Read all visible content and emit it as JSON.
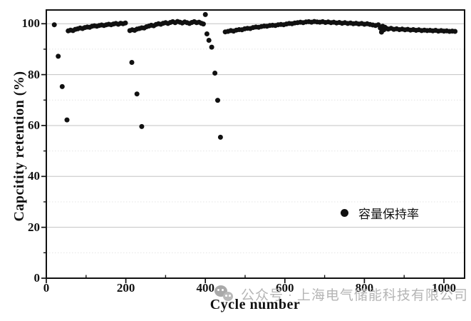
{
  "figure": {
    "background": "#ffffff",
    "frame_color": "#111111",
    "watermark": {
      "icon": "wechat-icon",
      "text": "公众号 · 上海电气储能科技有限公司",
      "color": "#b5b5b5"
    }
  },
  "chart_data": {
    "type": "scatter",
    "title": "",
    "xlabel": "Cycle number",
    "ylabel": "Capcitity retention (%)",
    "xlim": [
      0,
      1052
    ],
    "ylim": [
      0,
      105.4
    ],
    "x_ticks": [
      0,
      200,
      400,
      600,
      800,
      1000
    ],
    "x_minor_ticks": [
      100,
      300,
      500,
      700,
      900
    ],
    "y_ticks": [
      0,
      20,
      40,
      60,
      80,
      100
    ],
    "y_minor_ticks": [
      10,
      30,
      50,
      70,
      90
    ],
    "grid": "horizontal only: solid light-gray major lines at 20% steps, dotted fainter minor lines at 10% steps",
    "marker": "filled-circle",
    "marker_color": "#111111",
    "marker_size_px": 7,
    "legend": {
      "position": "inside right-middle",
      "entries": [
        {
          "label": "容量保持率",
          "marker": "filled-circle",
          "color": "#111111"
        }
      ]
    },
    "series": [
      {
        "name": "容量保持率",
        "points": [
          [
            20,
            99.6
          ],
          [
            30,
            87.2
          ],
          [
            40,
            75.3
          ],
          [
            52,
            62.2
          ],
          [
            55,
            97.2
          ],
          [
            61,
            97.5
          ],
          [
            67,
            97.3
          ],
          [
            73,
            97.8
          ],
          [
            79,
            98.0
          ],
          [
            85,
            98.3
          ],
          [
            91,
            98.1
          ],
          [
            97,
            98.5
          ],
          [
            103,
            98.7
          ],
          [
            109,
            98.6
          ],
          [
            115,
            99.0
          ],
          [
            121,
            99.2
          ],
          [
            127,
            99.0
          ],
          [
            133,
            99.3
          ],
          [
            139,
            99.5
          ],
          [
            145,
            99.3
          ],
          [
            151,
            99.6
          ],
          [
            157,
            99.8
          ],
          [
            163,
            99.6
          ],
          [
            169,
            99.9
          ],
          [
            175,
            100.1
          ],
          [
            181,
            99.8
          ],
          [
            187,
            100.2
          ],
          [
            193,
            100.0
          ],
          [
            199,
            100.3
          ],
          [
            215,
            84.8
          ],
          [
            228,
            72.4
          ],
          [
            240,
            59.6
          ],
          [
            210,
            97.3
          ],
          [
            216,
            97.6
          ],
          [
            222,
            97.4
          ],
          [
            228,
            97.9
          ],
          [
            234,
            98.1
          ],
          [
            240,
            98.4
          ],
          [
            246,
            98.3
          ],
          [
            252,
            98.8
          ],
          [
            258,
            99.1
          ],
          [
            264,
            99.4
          ],
          [
            270,
            99.2
          ],
          [
            276,
            99.7
          ],
          [
            282,
            100.0
          ],
          [
            288,
            99.8
          ],
          [
            294,
            100.2
          ],
          [
            300,
            100.4
          ],
          [
            306,
            100.1
          ],
          [
            312,
            100.5
          ],
          [
            318,
            100.8
          ],
          [
            324,
            100.4
          ],
          [
            330,
            100.9
          ],
          [
            336,
            100.6
          ],
          [
            342,
            100.3
          ],
          [
            348,
            100.7
          ],
          [
            354,
            100.4
          ],
          [
            360,
            100.1
          ],
          [
            366,
            100.5
          ],
          [
            372,
            100.8
          ],
          [
            378,
            100.4
          ],
          [
            384,
            100.6
          ],
          [
            390,
            100.2
          ],
          [
            395,
            99.9
          ],
          [
            400,
            103.6
          ],
          [
            404,
            96.0
          ],
          [
            409,
            93.5
          ],
          [
            416,
            90.8
          ],
          [
            424,
            80.6
          ],
          [
            431,
            69.9
          ],
          [
            438,
            55.4
          ],
          [
            450,
            96.8
          ],
          [
            457,
            97.0
          ],
          [
            464,
            97.3
          ],
          [
            471,
            97.1
          ],
          [
            478,
            97.5
          ],
          [
            485,
            97.7
          ],
          [
            492,
            97.6
          ],
          [
            499,
            98.0
          ],
          [
            506,
            98.2
          ],
          [
            513,
            98.1
          ],
          [
            520,
            98.5
          ],
          [
            527,
            98.7
          ],
          [
            534,
            98.6
          ],
          [
            541,
            98.9
          ],
          [
            548,
            99.1
          ],
          [
            555,
            99.0
          ],
          [
            562,
            99.3
          ],
          [
            569,
            99.4
          ],
          [
            576,
            99.3
          ],
          [
            583,
            99.6
          ],
          [
            590,
            99.7
          ],
          [
            597,
            99.6
          ],
          [
            604,
            99.9
          ],
          [
            611,
            100.1
          ],
          [
            618,
            100.0
          ],
          [
            625,
            100.3
          ],
          [
            632,
            100.4
          ],
          [
            639,
            100.6
          ],
          [
            646,
            100.4
          ],
          [
            653,
            100.7
          ],
          [
            660,
            100.8
          ],
          [
            667,
            100.6
          ],
          [
            674,
            100.9
          ],
          [
            681,
            100.7
          ],
          [
            688,
            100.6
          ],
          [
            695,
            100.8
          ],
          [
            702,
            100.5
          ],
          [
            709,
            100.7
          ],
          [
            716,
            100.4
          ],
          [
            723,
            100.6
          ],
          [
            730,
            100.3
          ],
          [
            737,
            100.5
          ],
          [
            744,
            100.2
          ],
          [
            751,
            100.4
          ],
          [
            758,
            100.1
          ],
          [
            765,
            100.3
          ],
          [
            772,
            100.0
          ],
          [
            779,
            100.2
          ],
          [
            786,
            99.9
          ],
          [
            793,
            100.1
          ],
          [
            800,
            99.8
          ],
          [
            807,
            100.0
          ],
          [
            814,
            99.7
          ],
          [
            821,
            99.5
          ],
          [
            828,
            99.3
          ],
          [
            835,
            99.6
          ],
          [
            840,
            98.3
          ],
          [
            843,
            96.7
          ],
          [
            846,
            99.0
          ],
          [
            849,
            97.6
          ],
          [
            852,
            98.6
          ],
          [
            856,
            98.1
          ],
          [
            860,
            97.9
          ],
          [
            867,
            98.2
          ],
          [
            874,
            97.8
          ],
          [
            881,
            98.0
          ],
          [
            888,
            97.7
          ],
          [
            895,
            97.9
          ],
          [
            902,
            97.6
          ],
          [
            909,
            97.8
          ],
          [
            916,
            97.5
          ],
          [
            923,
            97.7
          ],
          [
            930,
            97.4
          ],
          [
            937,
            97.6
          ],
          [
            944,
            97.3
          ],
          [
            951,
            97.5
          ],
          [
            958,
            97.3
          ],
          [
            965,
            97.4
          ],
          [
            972,
            97.2
          ],
          [
            979,
            97.4
          ],
          [
            986,
            97.1
          ],
          [
            993,
            97.3
          ],
          [
            1000,
            97.1
          ],
          [
            1007,
            97.2
          ],
          [
            1014,
            97.0
          ],
          [
            1021,
            97.1
          ],
          [
            1028,
            97.0
          ]
        ]
      }
    ]
  }
}
